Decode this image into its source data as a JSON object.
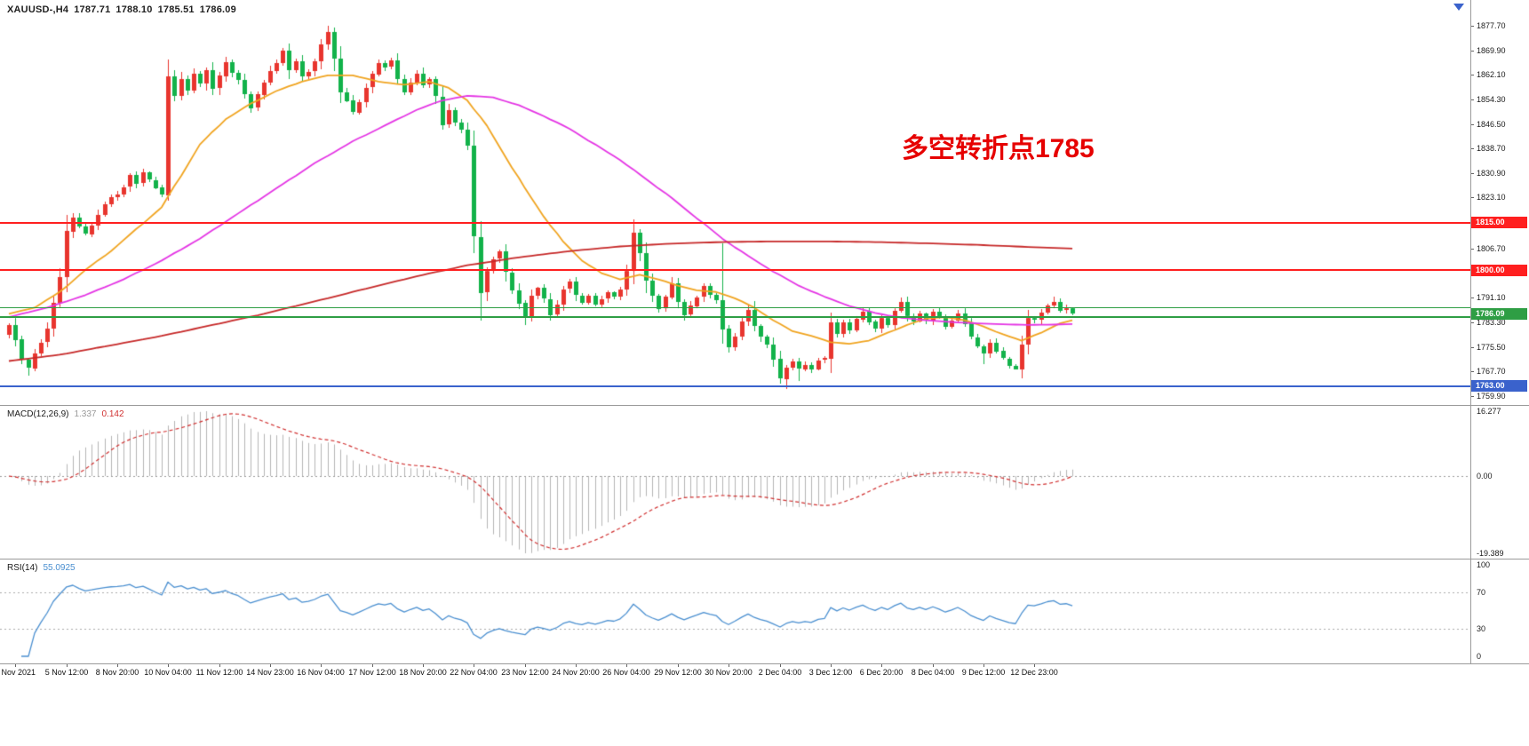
{
  "header": {
    "symbol": "XAUUSD-,H4",
    "open": "1787.71",
    "high": "1788.10",
    "low": "1785.51",
    "close": "1786.09"
  },
  "annotation": {
    "text": "多空转折点1785",
    "color": "#e60000"
  },
  "panels": {
    "macd_title": "MACD(12,26,9)",
    "rsi_title": "RSI(14)"
  },
  "price_axis": {
    "labels": [
      1877.7,
      1869.9,
      1862.1,
      1854.3,
      1846.5,
      1838.7,
      1830.9,
      1823.1,
      1806.7,
      1798.9,
      1791.1,
      1783.3,
      1775.5,
      1767.7,
      1759.9
    ]
  },
  "time_axis": {
    "labels": [
      {
        "bar": 1,
        "text": "4 Nov 2021"
      },
      {
        "bar": 9,
        "text": "5 Nov 12:00"
      },
      {
        "bar": 17,
        "text": "8 Nov 20:00"
      },
      {
        "bar": 25,
        "text": "10 Nov 04:00"
      },
      {
        "bar": 33,
        "text": "11 Nov 12:00"
      },
      {
        "bar": 41,
        "text": "14 Nov 23:00"
      },
      {
        "bar": 49,
        "text": "16 Nov 04:00"
      },
      {
        "bar": 57,
        "text": "17 Nov 12:00"
      },
      {
        "bar": 65,
        "text": "18 Nov 20:00"
      },
      {
        "bar": 73,
        "text": "22 Nov 04:00"
      },
      {
        "bar": 81,
        "text": "23 Nov 12:00"
      },
      {
        "bar": 89,
        "text": "24 Nov 20:00"
      },
      {
        "bar": 97,
        "text": "26 Nov 04:00"
      },
      {
        "bar": 105,
        "text": "29 Nov 12:00"
      },
      {
        "bar": 113,
        "text": "30 Nov 20:00"
      },
      {
        "bar": 121,
        "text": "2 Dec 04:00"
      },
      {
        "bar": 129,
        "text": "3 Dec 12:00"
      },
      {
        "bar": 137,
        "text": "6 Dec 20:00"
      },
      {
        "bar": 145,
        "text": "8 Dec 04:00"
      },
      {
        "bar": 153,
        "text": "9 Dec 12:00"
      },
      {
        "bar": 161,
        "text": "12 Dec 23:00"
      }
    ]
  },
  "chart_data": {
    "type": "candlestick",
    "symbol": "XAUUSD",
    "timeframe": "H4",
    "ylim": [
      1757,
      1886
    ],
    "colors": {
      "bull": "#e8352e",
      "bear": "#12b24a",
      "ma_fast": "#f0a420",
      "ma_mid": "#e435e4",
      "ma_slow": "#c62828",
      "macd_hist": "#b4b4b4",
      "macd_signal": "#d03030",
      "rsi_line": "#4a8fd0"
    },
    "first_open": 1779.5,
    "closes": [
      1782.6,
      1777.9,
      1771.3,
      1768.8,
      1773.5,
      1776.9,
      1781.2,
      1789.5,
      1797.8,
      1812.4,
      1816.8,
      1813.9,
      1811.5,
      1814.2,
      1817.6,
      1820.9,
      1823.3,
      1824.1,
      1826.4,
      1830.2,
      1827.5,
      1831.0,
      1828.7,
      1826.2,
      1823.8,
      1861.6,
      1855.4,
      1860.8,
      1857.2,
      1862.5,
      1859.4,
      1863.7,
      1857.8,
      1861.9,
      1866.3,
      1862.8,
      1860.5,
      1856.1,
      1851.7,
      1855.9,
      1859.8,
      1863.4,
      1865.9,
      1869.8,
      1863.7,
      1866.5,
      1861.8,
      1863.2,
      1866.4,
      1871.9,
      1875.8,
      1867.3,
      1856.6,
      1853.9,
      1850.2,
      1853.6,
      1858.1,
      1862.4,
      1866.0,
      1864.7,
      1866.8,
      1860.9,
      1856.7,
      1859.8,
      1862.6,
      1858.9,
      1860.7,
      1855.3,
      1846.2,
      1850.8,
      1846.9,
      1844.6,
      1839.5,
      1810.6,
      1792.8,
      1799.7,
      1803.4,
      1805.8,
      1799.2,
      1793.6,
      1789.4,
      1784.9,
      1791.8,
      1794.3,
      1790.8,
      1785.7,
      1788.9,
      1793.8,
      1796.2,
      1791.9,
      1789.6,
      1791.8,
      1788.9,
      1790.7,
      1792.8,
      1791.5,
      1793.8,
      1799.6,
      1811.9,
      1805.4,
      1796.7,
      1791.8,
      1787.6,
      1791.4,
      1795.8,
      1789.9,
      1785.7,
      1788.6,
      1791.3,
      1794.8,
      1792.1,
      1790.4,
      1781.2,
      1775.4,
      1778.9,
      1783.6,
      1787.4,
      1782.2,
      1778.8,
      1776.3,
      1771.6,
      1765.3,
      1768.9,
      1770.8,
      1768.4,
      1769.7,
      1768.4,
      1771.2,
      1771.9,
      1783.4,
      1779.6,
      1783.2,
      1780.7,
      1784.3,
      1786.8,
      1783.5,
      1781.2,
      1784.6,
      1782.4,
      1786.9,
      1789.8,
      1785.3,
      1783.6,
      1786.1,
      1783.9,
      1786.8,
      1784.7,
      1781.9,
      1783.8,
      1786.2,
      1782.9,
      1778.6,
      1775.8,
      1773.4,
      1776.9,
      1774.2,
      1771.8,
      1769.4,
      1768.2,
      1776.2,
      1784.6,
      1783.9,
      1786.3,
      1788.7,
      1789.9,
      1787.2,
      1787.71,
      1786.09
    ],
    "wick_overrides": {
      "3": {
        "l": 1766.5
      },
      "25": {
        "h": 1867.0,
        "l": 1821.9
      },
      "50": {
        "h": 1877.7
      },
      "74": {
        "l": 1783.9
      },
      "81": {
        "l": 1782.4
      },
      "98": {
        "h": 1816.2
      },
      "112": {
        "h": 1808.6
      },
      "122": {
        "l": 1762.1
      },
      "124": {
        "l": 1764.8
      },
      "153": {
        "l": 1770.1
      },
      "158": {
        "l": 1768.5
      },
      "164": {
        "h": 1791.4
      },
      "167": {
        "h": 1788.1,
        "l": 1785.51
      }
    },
    "moving_averages": [
      {
        "name": "ma-fast",
        "color": "#f0a420",
        "points": [
          [
            0,
            1786
          ],
          [
            4,
            1788
          ],
          [
            8,
            1793
          ],
          [
            12,
            1800
          ],
          [
            16,
            1806
          ],
          [
            20,
            1813
          ],
          [
            24,
            1820
          ],
          [
            27,
            1830
          ],
          [
            30,
            1840
          ],
          [
            34,
            1848
          ],
          [
            38,
            1853
          ],
          [
            42,
            1857
          ],
          [
            46,
            1860
          ],
          [
            50,
            1862
          ],
          [
            54,
            1862
          ],
          [
            58,
            1860
          ],
          [
            62,
            1859
          ],
          [
            66,
            1860
          ],
          [
            69,
            1858
          ],
          [
            72,
            1854
          ],
          [
            75,
            1846
          ],
          [
            78,
            1836
          ],
          [
            81,
            1826
          ],
          [
            84,
            1817
          ],
          [
            87,
            1809
          ],
          [
            90,
            1803
          ],
          [
            93,
            1799
          ],
          [
            96,
            1797
          ],
          [
            99,
            1798.5
          ],
          [
            102,
            1797
          ],
          [
            105,
            1795
          ],
          [
            108,
            1793.5
          ],
          [
            111,
            1793
          ],
          [
            114,
            1791
          ],
          [
            117,
            1788
          ],
          [
            120,
            1784
          ],
          [
            123,
            1780.5
          ],
          [
            126,
            1779
          ],
          [
            129,
            1777
          ],
          [
            132,
            1776.5
          ],
          [
            135,
            1777.5
          ],
          [
            138,
            1780
          ],
          [
            141,
            1782.5
          ],
          [
            144,
            1784.5
          ],
          [
            147,
            1785
          ],
          [
            150,
            1784
          ],
          [
            153,
            1782
          ],
          [
            156,
            1779.5
          ],
          [
            159,
            1777.5
          ],
          [
            162,
            1780
          ],
          [
            165,
            1783
          ],
          [
            167,
            1784
          ]
        ]
      },
      {
        "name": "ma-mid",
        "color": "#e435e4",
        "points": [
          [
            0,
            1785
          ],
          [
            6,
            1788
          ],
          [
            12,
            1792
          ],
          [
            18,
            1797
          ],
          [
            24,
            1803
          ],
          [
            30,
            1810
          ],
          [
            36,
            1818
          ],
          [
            42,
            1826
          ],
          [
            48,
            1834
          ],
          [
            54,
            1841
          ],
          [
            60,
            1847
          ],
          [
            64,
            1851
          ],
          [
            68,
            1854
          ],
          [
            72,
            1855.5
          ],
          [
            76,
            1855
          ],
          [
            80,
            1852.5
          ],
          [
            84,
            1849
          ],
          [
            88,
            1845
          ],
          [
            92,
            1840
          ],
          [
            96,
            1835
          ],
          [
            100,
            1829
          ],
          [
            104,
            1823
          ],
          [
            108,
            1816.5
          ],
          [
            112,
            1810
          ],
          [
            116,
            1804.5
          ],
          [
            120,
            1799.5
          ],
          [
            124,
            1795
          ],
          [
            128,
            1791.5
          ],
          [
            132,
            1788.5
          ],
          [
            136,
            1786.3
          ],
          [
            140,
            1784.8
          ],
          [
            144,
            1784
          ],
          [
            148,
            1783.4
          ],
          [
            152,
            1783
          ],
          [
            156,
            1782.7
          ],
          [
            160,
            1782.5
          ],
          [
            164,
            1782.6
          ],
          [
            167,
            1782.8
          ]
        ]
      },
      {
        "name": "ma-slow",
        "color": "#c62828",
        "points": [
          [
            0,
            1771
          ],
          [
            8,
            1773
          ],
          [
            16,
            1776
          ],
          [
            24,
            1779
          ],
          [
            32,
            1782.5
          ],
          [
            40,
            1786
          ],
          [
            48,
            1790
          ],
          [
            56,
            1794
          ],
          [
            64,
            1798
          ],
          [
            72,
            1801.5
          ],
          [
            80,
            1804
          ],
          [
            88,
            1806
          ],
          [
            96,
            1807.5
          ],
          [
            104,
            1808.4
          ],
          [
            112,
            1808.9
          ],
          [
            120,
            1809.1
          ],
          [
            128,
            1809.1
          ],
          [
            136,
            1808.9
          ],
          [
            144,
            1808.5
          ],
          [
            152,
            1808
          ],
          [
            158,
            1807.5
          ],
          [
            163,
            1807.1
          ],
          [
            167,
            1806.8
          ]
        ]
      }
    ],
    "horizontal_lines": [
      {
        "id": "resistance-line-1815",
        "price": 1815.0,
        "label": "1815.00",
        "color": "#ff1f1f",
        "thickness": 2,
        "badge": true
      },
      {
        "id": "resistance-line-1800",
        "price": 1800.0,
        "label": "1800.00",
        "color": "#ff1f1f",
        "thickness": 2,
        "badge": true
      },
      {
        "id": "pivot-line-1788",
        "price": 1788.0,
        "label": "1788.00",
        "color": "#2e9e44",
        "thickness": 1,
        "badge": false
      },
      {
        "id": "pivot-line-1785",
        "price": 1785.0,
        "label": "1785.00",
        "color": "#2e9e44",
        "thickness": 2,
        "badge": false
      },
      {
        "id": "support-line-1763",
        "price": 1763.0,
        "label": "1763.00",
        "color": "#3a62cc",
        "thickness": 2,
        "badge": true
      }
    ],
    "bid_badge": {
      "price": 1786.09,
      "label": "1786.09",
      "color": "#2e9e44"
    },
    "macd": {
      "fast": 12,
      "slow": 26,
      "signal": 9,
      "value": "1.337",
      "signal_value": "0.142",
      "max_label": "16.277",
      "zero_label": "0.00",
      "min_label": "-19.389",
      "vmax": 16.277,
      "vmin": -19.389
    },
    "rsi": {
      "period": 14,
      "value": "55.0925",
      "levels": [
        100,
        70,
        30,
        0
      ]
    }
  }
}
